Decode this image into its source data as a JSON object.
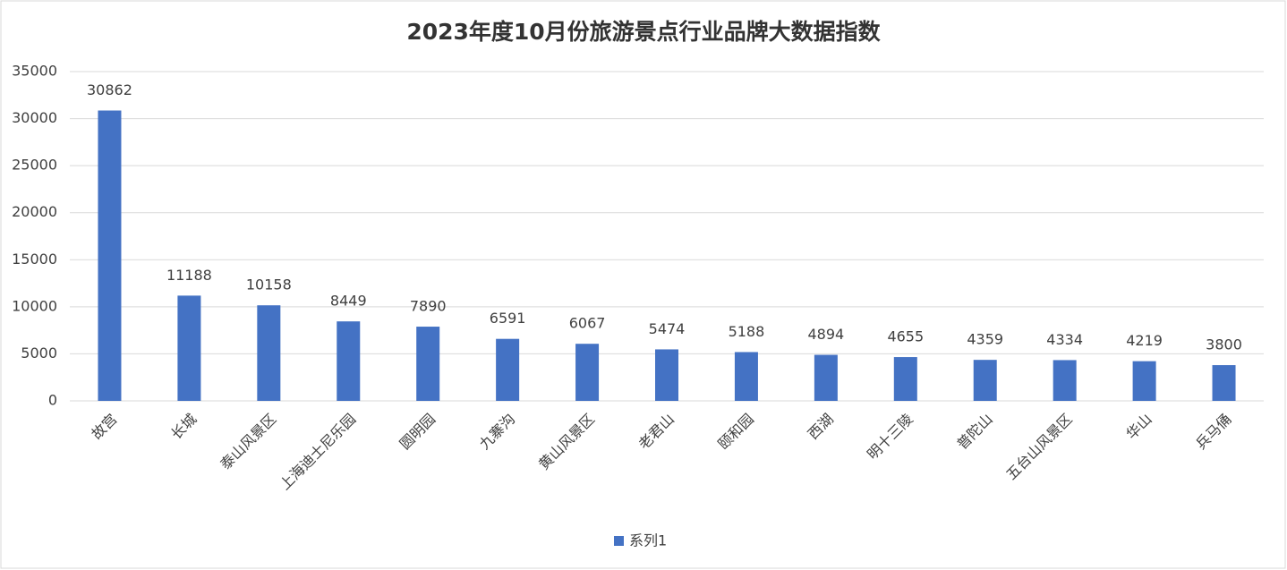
{
  "chart_data": {
    "type": "bar",
    "title": "2023年度10月份旅游景点行业品牌大数据指数",
    "categories": [
      "故宫",
      "长城",
      "泰山风景区",
      "上海迪士尼乐园",
      "圆明园",
      "九寨沟",
      "黄山风景区",
      "老君山",
      "颐和园",
      "西湖",
      "明十三陵",
      "普陀山",
      "五台山风景区",
      "华山",
      "兵马俑"
    ],
    "series": [
      {
        "name": "系列1",
        "color": "#4472c4",
        "values": [
          30862,
          11188,
          10158,
          8449,
          7890,
          6591,
          6067,
          5474,
          5188,
          4894,
          4655,
          4359,
          4334,
          4219,
          3800
        ]
      }
    ],
    "ylim": [
      0,
      35000
    ],
    "yticks": [
      0,
      5000,
      10000,
      15000,
      20000,
      25000,
      30000,
      35000
    ],
    "grid": true,
    "legend": "bottom"
  }
}
